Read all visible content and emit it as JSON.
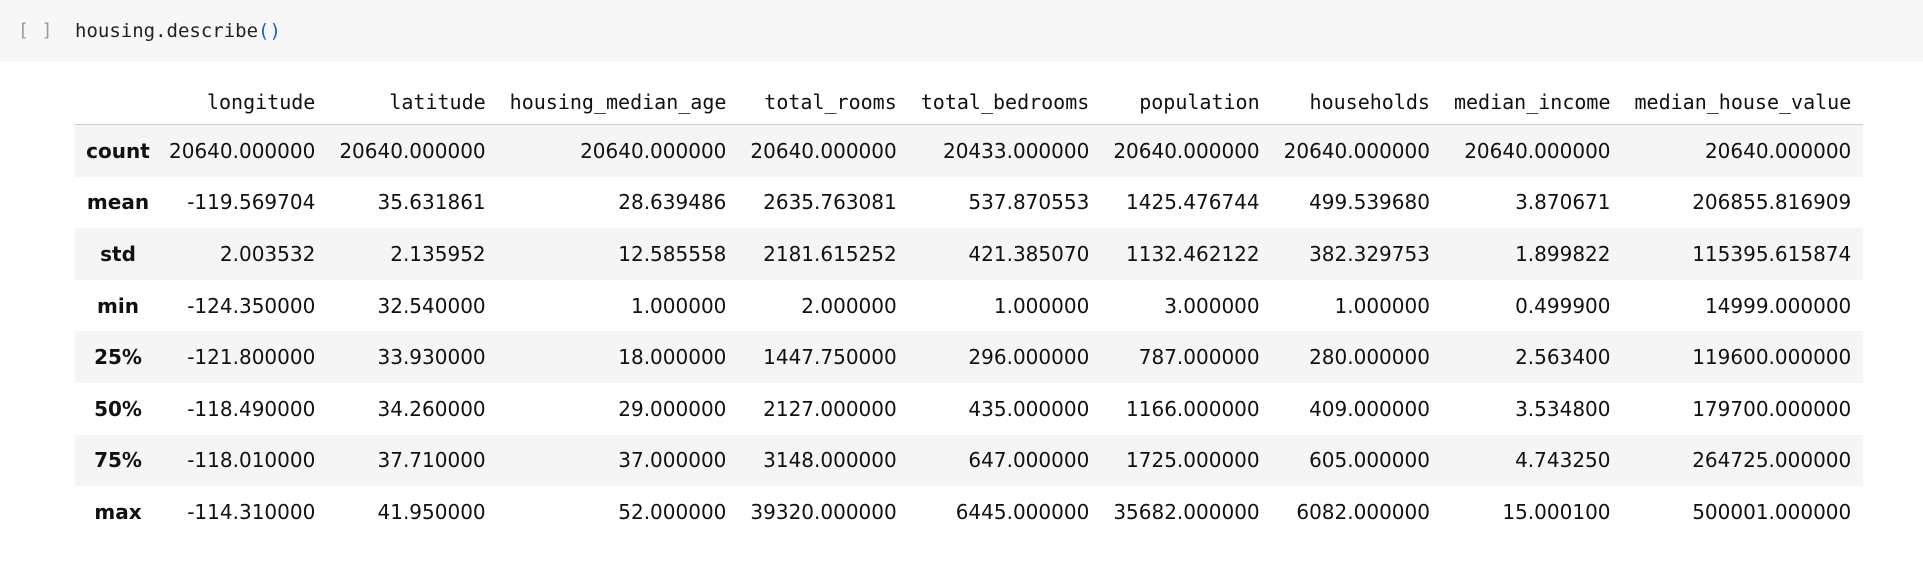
{
  "cell": {
    "exec_count": "[ ]",
    "code_prefix": "housing.describe",
    "code_parens": "()"
  },
  "table": {
    "columns": [
      "longitude",
      "latitude",
      "housing_median_age",
      "total_rooms",
      "total_bedrooms",
      "population",
      "households",
      "median_income",
      "median_house_value"
    ],
    "rows": [
      {
        "label": "count",
        "values": [
          "20640.000000",
          "20640.000000",
          "20640.000000",
          "20640.000000",
          "20433.000000",
          "20640.000000",
          "20640.000000",
          "20640.000000",
          "20640.000000"
        ]
      },
      {
        "label": "mean",
        "values": [
          "-119.569704",
          "35.631861",
          "28.639486",
          "2635.763081",
          "537.870553",
          "1425.476744",
          "499.539680",
          "3.870671",
          "206855.816909"
        ]
      },
      {
        "label": "std",
        "values": [
          "2.003532",
          "2.135952",
          "12.585558",
          "2181.615252",
          "421.385070",
          "1132.462122",
          "382.329753",
          "1.899822",
          "115395.615874"
        ]
      },
      {
        "label": "min",
        "values": [
          "-124.350000",
          "32.540000",
          "1.000000",
          "2.000000",
          "1.000000",
          "3.000000",
          "1.000000",
          "0.499900",
          "14999.000000"
        ]
      },
      {
        "label": "25%",
        "values": [
          "-121.800000",
          "33.930000",
          "18.000000",
          "1447.750000",
          "296.000000",
          "787.000000",
          "280.000000",
          "2.563400",
          "119600.000000"
        ]
      },
      {
        "label": "50%",
        "values": [
          "-118.490000",
          "34.260000",
          "29.000000",
          "2127.000000",
          "435.000000",
          "1166.000000",
          "409.000000",
          "3.534800",
          "179700.000000"
        ]
      },
      {
        "label": "75%",
        "values": [
          "-118.010000",
          "37.710000",
          "37.000000",
          "3148.000000",
          "647.000000",
          "1725.000000",
          "605.000000",
          "4.743250",
          "264725.000000"
        ]
      },
      {
        "label": "max",
        "values": [
          "-114.310000",
          "41.950000",
          "52.000000",
          "39320.000000",
          "6445.000000",
          "35682.000000",
          "6082.000000",
          "15.000100",
          "500001.000000"
        ]
      }
    ]
  }
}
